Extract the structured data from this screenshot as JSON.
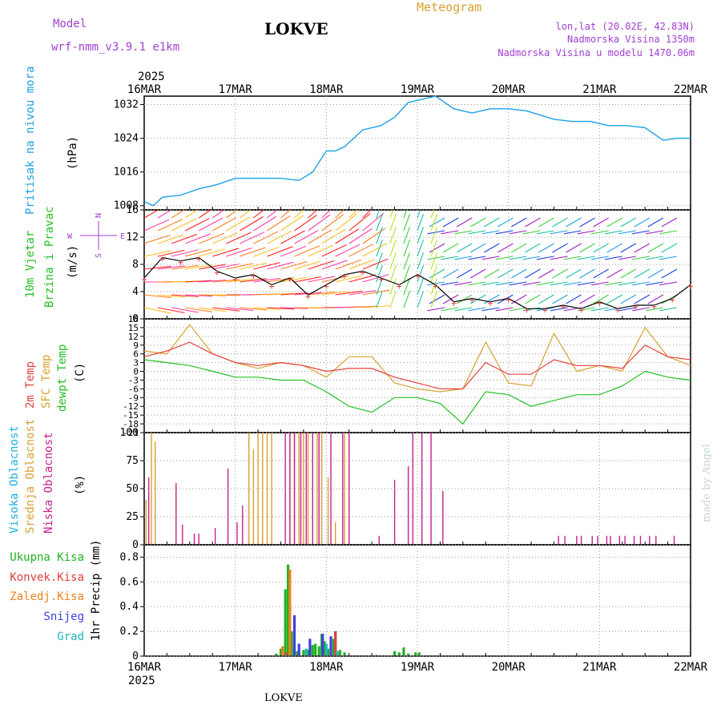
{
  "header": {
    "model_label": "Model",
    "model_name": "wrf-nmm_v3.9.1  e1km",
    "station": "LOKVE",
    "meteogram": "Meteogram",
    "lonlat": "lon,lat (20.02E, 42.83N)",
    "elevation": "Nadmorska Visina 1350m",
    "model_elevation": "Nadmorska Visina u modelu 1470.06m",
    "footer_station": "LOKVE",
    "watermark": "made by Angel"
  },
  "colors": {
    "pressure": "#1ea0e6",
    "wind_title": "#22c022",
    "wind_sub": "#22c022",
    "t2m": "#e64040",
    "sfc": "#d8a030",
    "dew": "#22c022",
    "high": "#20b0e0",
    "mid": "#d8a030",
    "low": "#c8208c",
    "total": "#22b022",
    "conv": "#e04040",
    "frz": "#f08020",
    "snow": "#4040e0",
    "grad": "#20b8b8",
    "title": "#d8a030",
    "purple": "#a040d0"
  },
  "time_axis": {
    "year": "2025",
    "labels": [
      "16MAR",
      "17MAR",
      "18MAR",
      "19MAR",
      "20MAR",
      "21MAR",
      "22MAR"
    ]
  },
  "panels": {
    "pressure": {
      "label": "Pritisak na nivou mora",
      "unit": "(hPa)"
    },
    "wind": {
      "label1": "10m Vjetar",
      "label2": "Brzina i Pravac",
      "unit": "(m/s)",
      "compass": [
        "N",
        "S",
        "W",
        "E"
      ]
    },
    "temp": {
      "label1": "2m Temp",
      "label2": "SFC Temp",
      "label3": "dewpt Temp",
      "unit": "(C)"
    },
    "cloud": {
      "label1": "Visoka Oblacnost",
      "label2": "Srednja Oblacnost",
      "label3": "Niska Oblacnost",
      "unit": "(%)"
    },
    "precip": {
      "labels": [
        "Ukupna Kisa",
        "Konvek.Kisa",
        "Zaledj.Kisa",
        "Snijeg",
        "Grad"
      ],
      "unit": "1hr Precip (mm)"
    }
  },
  "chart_data": [
    {
      "type": "line",
      "title": "Pritisak na nivou mora",
      "ylabel": "(hPa)",
      "ylim": [
        1007,
        1034
      ],
      "yticks": [
        "1008",
        "1016",
        "1024",
        "1032"
      ],
      "x_days": [
        0,
        0.1,
        0.2,
        0.4,
        0.6,
        0.8,
        1.0,
        1.2,
        1.5,
        1.7,
        1.85,
        2.0,
        2.1,
        2.2,
        2.4,
        2.6,
        2.75,
        2.9,
        3.0,
        3.2,
        3.4,
        3.6,
        3.8,
        4.0,
        4.2,
        4.5,
        4.7,
        4.9,
        5.1,
        5.3,
        5.5,
        5.7,
        5.85,
        6.0
      ],
      "series": [
        {
          "values": [
            1009,
            1008,
            1010,
            1010.5,
            1012,
            1013,
            1014.5,
            1014.5,
            1014.5,
            1014,
            1016,
            1021,
            1021,
            1022,
            1026,
            1027,
            1029,
            1032.5,
            1033,
            1034,
            1031,
            1030,
            1031,
            1031,
            1030.5,
            1028.5,
            1028,
            1028,
            1027,
            1027,
            1026.5,
            1023.5,
            1024,
            1024
          ]
        }
      ]
    },
    {
      "type": "line",
      "title": "10m Vjetar Brzina i Pravac",
      "ylabel": "(m/s)",
      "ylim": [
        0,
        16
      ],
      "yticks": [
        "0",
        "4",
        "8",
        "12",
        "16"
      ],
      "x_days": [
        0,
        0.2,
        0.4,
        0.6,
        0.8,
        1.0,
        1.2,
        1.4,
        1.6,
        1.8,
        2.0,
        2.2,
        2.4,
        2.6,
        2.8,
        3.0,
        3.2,
        3.4,
        3.6,
        3.8,
        4.0,
        4.2,
        4.4,
        4.6,
        4.8,
        5.0,
        5.2,
        5.4,
        5.6,
        5.8,
        6.0
      ],
      "series": [
        {
          "name": "speed",
          "values": [
            6,
            9,
            8.5,
            9,
            7,
            6,
            6.5,
            5,
            6,
            3.5,
            5,
            6.5,
            7,
            6,
            5,
            6.5,
            5,
            2.5,
            3,
            2.5,
            3,
            1.5,
            1.5,
            2,
            1.5,
            2.5,
            1.5,
            2,
            2,
            3,
            5
          ]
        }
      ]
    },
    {
      "type": "line",
      "title": "2m Temp / SFC Temp / dewpt Temp",
      "ylabel": "(C)",
      "ylim": [
        -21,
        18
      ],
      "yticks": [
        "-21",
        "-18",
        "-15",
        "-12",
        "-9",
        "-6",
        "-3",
        "0",
        "3",
        "6",
        "9",
        "12",
        "15",
        "18"
      ],
      "x_days": [
        0,
        0.25,
        0.5,
        0.75,
        1.0,
        1.25,
        1.5,
        1.75,
        2.0,
        2.25,
        2.5,
        2.75,
        3.0,
        3.25,
        3.5,
        3.75,
        4.0,
        4.25,
        4.5,
        4.75,
        5.0,
        5.25,
        5.5,
        5.75,
        6.0
      ],
      "series": [
        {
          "name": "2m Temp",
          "values": [
            5,
            7,
            10,
            6,
            3,
            2,
            3,
            2,
            0,
            1,
            1,
            -2,
            -4,
            -6,
            -6,
            3,
            -1,
            -1,
            4,
            2,
            2,
            1,
            9,
            5,
            4
          ]
        },
        {
          "name": "SFC Temp",
          "values": [
            7,
            6,
            16,
            6,
            3,
            1,
            3,
            2,
            -2,
            5,
            5,
            -4,
            -6,
            -7,
            -6,
            10,
            -4,
            -5,
            13,
            0,
            2,
            0,
            15,
            5,
            2
          ]
        },
        {
          "name": "dewpt Temp",
          "values": [
            4,
            3,
            2,
            0,
            -2,
            -2,
            -3,
            -3,
            -7,
            -12,
            -14,
            -9,
            -9,
            -11,
            -18,
            -7,
            -8,
            -12,
            -10,
            -8,
            -8,
            -5,
            0,
            -2,
            -3
          ]
        }
      ]
    },
    {
      "type": "bar",
      "title": "Visoka / Srednja / Niska Oblacnost",
      "ylabel": "(%)",
      "ylim": [
        0,
        100
      ],
      "yticks": [
        "0",
        "25",
        "50",
        "75",
        "100"
      ],
      "series": [
        {
          "name": "Srednja Oblacnost",
          "points": [
            [
              0.02,
              40
            ],
            [
              0.08,
              100
            ],
            [
              0.12,
              92
            ],
            [
              1.15,
              100
            ],
            [
              1.2,
              85
            ],
            [
              1.25,
              100
            ],
            [
              1.3,
              100
            ],
            [
              1.35,
              100
            ],
            [
              1.4,
              100
            ],
            [
              1.6,
              100
            ],
            [
              1.65,
              100
            ],
            [
              1.7,
              100
            ],
            [
              1.75,
              100
            ],
            [
              1.8,
              100
            ],
            [
              1.85,
              100
            ],
            [
              1.9,
              100
            ],
            [
              1.95,
              100
            ],
            [
              2.02,
              60
            ],
            [
              2.1,
              20
            ],
            [
              2.2,
              100
            ]
          ]
        },
        {
          "name": "Niska Oblacnost",
          "points": [
            [
              0.05,
              60
            ],
            [
              0.35,
              55
            ],
            [
              0.42,
              18
            ],
            [
              0.55,
              10
            ],
            [
              0.6,
              10
            ],
            [
              0.78,
              15
            ],
            [
              0.92,
              68
            ],
            [
              1.02,
              20
            ],
            [
              1.08,
              35
            ],
            [
              1.55,
              100
            ],
            [
              1.6,
              100
            ],
            [
              1.65,
              100
            ],
            [
              1.72,
              100
            ],
            [
              1.78,
              100
            ],
            [
              1.85,
              100
            ],
            [
              1.92,
              100
            ],
            [
              2.05,
              100
            ],
            [
              2.18,
              100
            ],
            [
              2.25,
              100
            ],
            [
              2.58,
              8
            ],
            [
              2.75,
              58
            ],
            [
              2.9,
              70
            ],
            [
              2.95,
              100
            ],
            [
              3.05,
              100
            ],
            [
              3.15,
              100
            ],
            [
              3.28,
              48
            ],
            [
              4.55,
              8
            ],
            [
              4.62,
              8
            ],
            [
              4.75,
              8
            ],
            [
              4.8,
              8
            ],
            [
              4.92,
              8
            ],
            [
              4.98,
              8
            ],
            [
              5.08,
              8
            ],
            [
              5.12,
              8
            ],
            [
              5.22,
              8
            ],
            [
              5.28,
              8
            ],
            [
              5.38,
              8
            ],
            [
              5.45,
              8
            ],
            [
              5.55,
              8
            ],
            [
              5.62,
              8
            ],
            [
              5.82,
              8
            ]
          ]
        }
      ]
    },
    {
      "type": "bar",
      "title": "1hr Precip",
      "ylabel": "1hr Precip (mm)",
      "ylim": [
        0,
        0.9
      ],
      "yticks": [
        "0",
        "0.2",
        "0.4",
        "0.6",
        "0.8"
      ],
      "series": [
        {
          "name": "Ukupna Kisa",
          "points": [
            [
              0.92,
              0.01
            ],
            [
              1.45,
              0.02
            ],
            [
              1.5,
              0.06
            ],
            [
              1.55,
              0.54
            ],
            [
              1.58,
              0.74
            ],
            [
              1.62,
              0.2
            ],
            [
              1.68,
              0.04
            ],
            [
              1.75,
              0.05
            ],
            [
              1.8,
              0.05
            ],
            [
              1.85,
              0.09
            ],
            [
              1.88,
              0.1
            ],
            [
              1.92,
              0.08
            ],
            [
              1.95,
              0.18
            ],
            [
              1.98,
              0.12
            ],
            [
              2.02,
              0.06
            ],
            [
              2.08,
              0.14
            ],
            [
              2.1,
              0.2
            ],
            [
              2.15,
              0.05
            ],
            [
              2.2,
              0.03
            ],
            [
              2.55,
              0.01
            ],
            [
              2.75,
              0.04
            ],
            [
              2.8,
              0.03
            ],
            [
              2.85,
              0.07
            ],
            [
              2.9,
              0.02
            ],
            [
              2.98,
              0.03
            ],
            [
              3.02,
              0.03
            ]
          ]
        },
        {
          "name": "Konvek.Kisa",
          "points": [
            [
              1.56,
              0.03
            ],
            [
              2.1,
              0.2
            ]
          ]
        },
        {
          "name": "Zaledj.Kisa",
          "points": [
            [
              1.52,
              0.08
            ],
            [
              1.6,
              0.7
            ]
          ]
        },
        {
          "name": "Snijeg",
          "points": [
            [
              1.65,
              0.33
            ],
            [
              1.7,
              0.1
            ],
            [
              1.82,
              0.14
            ],
            [
              1.96,
              0.18
            ],
            [
              2.05,
              0.16
            ]
          ]
        },
        {
          "name": "Grad",
          "points": [
            [
              1.78,
              0.06
            ],
            [
              2.0,
              0.1
            ],
            [
              2.12,
              0.04
            ]
          ]
        }
      ]
    }
  ]
}
